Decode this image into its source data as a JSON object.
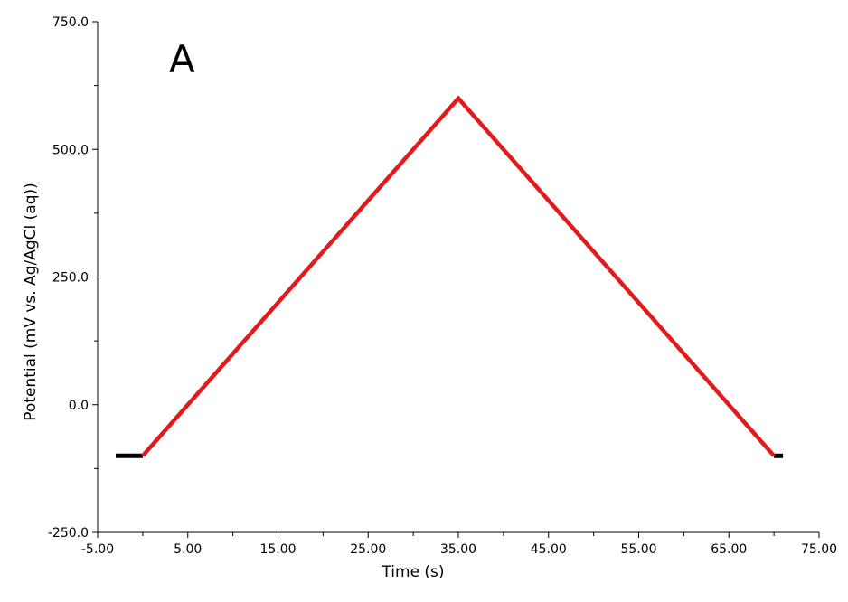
{
  "chart_data": {
    "type": "line",
    "title": "",
    "panel_label": "A",
    "xlabel": "Time (s)",
    "ylabel": "Potential (mV vs. Ag/AgCl (aq))",
    "xlim": [
      -5.0,
      75.0
    ],
    "ylim": [
      -250.0,
      750.0
    ],
    "x_ticks": [
      -5.0,
      5.0,
      15.0,
      25.0,
      35.0,
      45.0,
      55.0,
      65.0,
      75.0
    ],
    "x_tick_labels": [
      "-5.00",
      "5.00",
      "15.00",
      "25.00",
      "35.00",
      "45.00",
      "55.00",
      "65.00",
      "75.00"
    ],
    "y_ticks": [
      -250.0,
      0.0,
      250.0,
      500.0,
      750.0
    ],
    "y_tick_labels": [
      "-250.0",
      "0.0",
      "250.0",
      "500.0",
      "750.0"
    ],
    "grid": false,
    "series": [
      {
        "color": "#000000",
        "x": [
          -3.0,
          0.0
        ],
        "y": [
          -100,
          -100
        ]
      },
      {
        "color": "#000000",
        "x": [
          70.0,
          71.0
        ],
        "y": [
          -100,
          -100
        ]
      },
      {
        "color": "#e31a1c",
        "x": [
          0.0,
          35.0,
          70.0
        ],
        "y": [
          -100,
          600,
          -100
        ]
      }
    ]
  }
}
